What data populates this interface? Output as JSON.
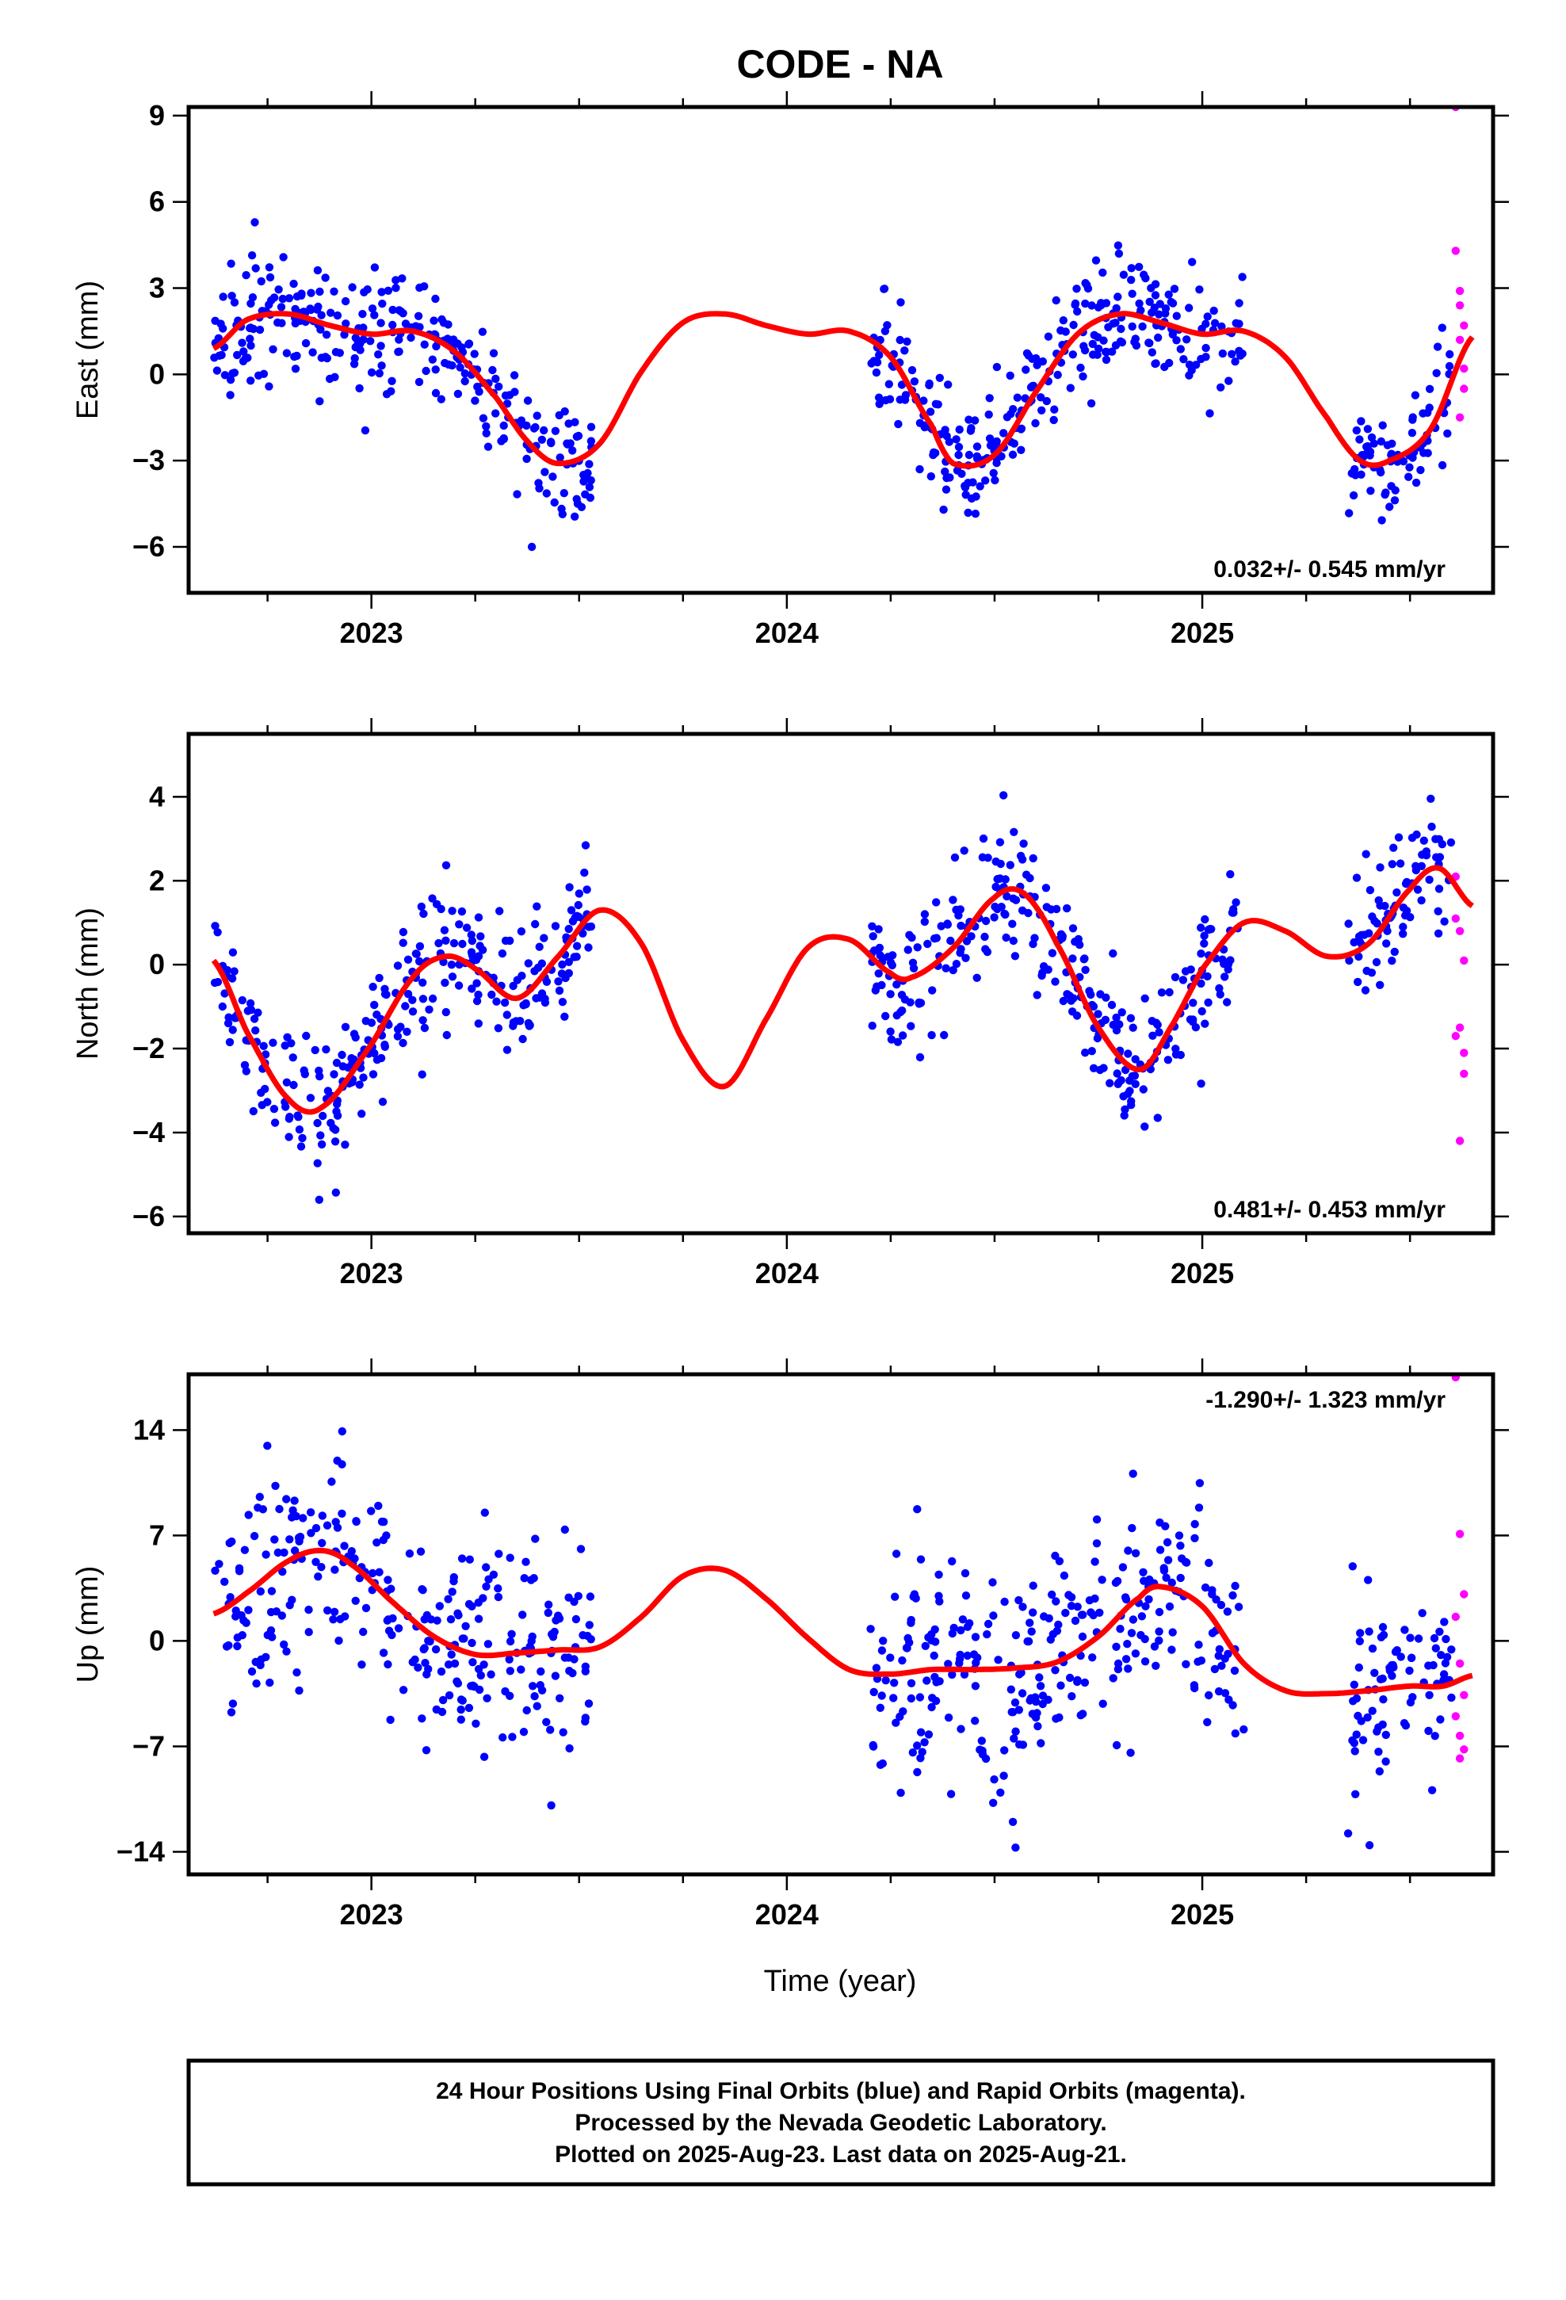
{
  "title": "CODE - NA",
  "xlabel": "Time (year)",
  "caption": {
    "lines": [
      "24 Hour Positions Using Final Orbits (blue) and Rapid Orbits (magenta).",
      "Processed by the Nevada Geodetic Laboratory.",
      "Plotted on 2025-Aug-23. Last data on 2025-Aug-21."
    ]
  },
  "colors": {
    "final": "#0000ff",
    "rapid": "#ff00ff",
    "model": "#ff0000",
    "frame": "#000000"
  },
  "chart_data": [
    {
      "type": "scatter",
      "component": "east",
      "ylabel": "East (mm)",
      "rate_text": "0.032+/- 0.545 mm/yr",
      "rate_position": "bottom-right",
      "xlim": [
        2022.56,
        2025.7
      ],
      "ylim": [
        -7.6,
        9.3
      ],
      "yticks": [
        -6,
        -3,
        0,
        3,
        6,
        9
      ],
      "xticks": [
        2023,
        2024,
        2025
      ],
      "data_segments": [
        [
          2022.62,
          2023.53
        ],
        [
          2024.2,
          2025.1
        ],
        [
          2025.35,
          2025.6
        ]
      ],
      "model_knots": {
        "x": [
          2022.62,
          2022.7,
          2022.8,
          2022.9,
          2023.0,
          2023.1,
          2023.2,
          2023.3,
          2023.38,
          2023.45,
          2023.55,
          2023.65,
          2023.75,
          2023.85,
          2023.95,
          2024.05,
          2024.15,
          2024.25,
          2024.35,
          2024.4,
          2024.5,
          2024.6,
          2024.7,
          2024.8,
          2024.9,
          2025.0,
          2025.1,
          2025.2,
          2025.3,
          2025.38,
          2025.45,
          2025.55,
          2025.65
        ],
        "y": [
          0.9,
          1.9,
          2.1,
          1.7,
          1.4,
          1.5,
          0.8,
          -0.8,
          -2.4,
          -3.1,
          -2.4,
          0.1,
          1.8,
          2.1,
          1.7,
          1.4,
          1.5,
          0.6,
          -1.8,
          -3.1,
          -2.8,
          -0.6,
          1.4,
          2.1,
          1.8,
          1.4,
          1.5,
          0.6,
          -1.5,
          -3.0,
          -3.0,
          -1.9,
          1.3
        ]
      },
      "final_noise_sd": 1.0,
      "final_points_per_year": 320,
      "rapid_points": [
        {
          "x": 2025.61,
          "y": 9.3
        },
        {
          "x": 2025.61,
          "y": 4.3
        },
        {
          "x": 2025.62,
          "y": 2.9
        },
        {
          "x": 2025.62,
          "y": 2.4
        },
        {
          "x": 2025.63,
          "y": 1.7
        },
        {
          "x": 2025.62,
          "y": 1.2
        },
        {
          "x": 2025.63,
          "y": 0.2
        },
        {
          "x": 2025.63,
          "y": -0.5
        },
        {
          "x": 2025.62,
          "y": -1.5
        }
      ]
    },
    {
      "type": "scatter",
      "component": "north",
      "ylabel": "North (mm)",
      "rate_text": "0.481+/- 0.453 mm/yr",
      "rate_position": "bottom-right",
      "xlim": [
        2022.56,
        2025.7
      ],
      "ylim": [
        -6.4,
        5.5
      ],
      "yticks": [
        -6,
        -4,
        -2,
        0,
        2,
        4
      ],
      "xticks": [
        2023,
        2024,
        2025
      ],
      "data_segments": [
        [
          2022.62,
          2023.53
        ],
        [
          2024.2,
          2025.1
        ],
        [
          2025.35,
          2025.6
        ]
      ],
      "model_knots": {
        "x": [
          2022.62,
          2022.7,
          2022.8,
          2022.88,
          2023.0,
          2023.1,
          2023.18,
          2023.25,
          2023.35,
          2023.45,
          2023.55,
          2023.65,
          2023.75,
          2023.85,
          2023.95,
          2024.05,
          2024.15,
          2024.25,
          2024.3,
          2024.4,
          2024.5,
          2024.57,
          2024.65,
          2024.75,
          2024.85,
          2024.93,
          2025.0,
          2025.1,
          2025.2,
          2025.3,
          2025.4,
          2025.5,
          2025.57,
          2025.65
        ],
        "y": [
          0.1,
          -1.6,
          -3.2,
          -3.4,
          -1.9,
          -0.3,
          0.2,
          -0.1,
          -0.8,
          0.2,
          1.3,
          0.5,
          -1.8,
          -2.9,
          -1.3,
          0.4,
          0.6,
          -0.2,
          -0.3,
          0.4,
          1.6,
          1.7,
          0.5,
          -1.5,
          -2.5,
          -1.4,
          -0.1,
          1.0,
          0.8,
          0.2,
          0.5,
          1.8,
          2.3,
          1.4
        ]
      },
      "final_noise_sd": 0.85,
      "final_points_per_year": 320,
      "rapid_points": [
        {
          "x": 2025.61,
          "y": 2.1
        },
        {
          "x": 2025.61,
          "y": 1.1
        },
        {
          "x": 2025.62,
          "y": 0.8
        },
        {
          "x": 2025.63,
          "y": 0.1
        },
        {
          "x": 2025.62,
          "y": -1.5
        },
        {
          "x": 2025.61,
          "y": -1.7
        },
        {
          "x": 2025.63,
          "y": -2.1
        },
        {
          "x": 2025.63,
          "y": -2.6
        },
        {
          "x": 2025.62,
          "y": -4.2
        }
      ]
    },
    {
      "type": "scatter",
      "component": "up",
      "ylabel": "Up (mm)",
      "rate_text": "-1.290+/- 1.323 mm/yr",
      "rate_position": "top-right",
      "xlim": [
        2022.56,
        2025.7
      ],
      "ylim": [
        -15.5,
        17.7
      ],
      "yticks": [
        -14,
        -7,
        0,
        7,
        14
      ],
      "xticks": [
        2023,
        2024,
        2025
      ],
      "data_segments": [
        [
          2022.62,
          2023.53
        ],
        [
          2024.2,
          2025.1
        ],
        [
          2025.35,
          2025.6
        ]
      ],
      "model_knots": {
        "x": [
          2022.62,
          2022.7,
          2022.8,
          2022.88,
          2022.95,
          2023.05,
          2023.15,
          2023.25,
          2023.35,
          2023.45,
          2023.55,
          2023.65,
          2023.75,
          2023.85,
          2023.95,
          2024.05,
          2024.15,
          2024.25,
          2024.35,
          2024.45,
          2024.55,
          2024.65,
          2024.75,
          2024.85,
          2024.9,
          2025.0,
          2025.1,
          2025.2,
          2025.3,
          2025.4,
          2025.5,
          2025.58,
          2025.65
        ],
        "y": [
          1.8,
          3.2,
          5.3,
          6.0,
          5.1,
          2.6,
          0.3,
          -0.9,
          -0.8,
          -0.6,
          -0.4,
          1.6,
          4.3,
          4.7,
          2.8,
          0.2,
          -1.9,
          -2.2,
          -1.9,
          -1.9,
          -1.8,
          -1.4,
          0.3,
          2.9,
          3.6,
          2.3,
          -1.5,
          -3.3,
          -3.5,
          -3.3,
          -3.0,
          -3.0,
          -2.3
        ]
      },
      "final_noise_sd": 3.6,
      "final_points_per_year": 320,
      "rapid_points": [
        {
          "x": 2025.61,
          "y": 17.5
        },
        {
          "x": 2025.62,
          "y": 7.1
        },
        {
          "x": 2025.63,
          "y": 3.1
        },
        {
          "x": 2025.61,
          "y": 1.6
        },
        {
          "x": 2025.62,
          "y": -1.5
        },
        {
          "x": 2025.63,
          "y": -3.6
        },
        {
          "x": 2025.61,
          "y": -5.0
        },
        {
          "x": 2025.62,
          "y": -6.3
        },
        {
          "x": 2025.63,
          "y": -7.2
        },
        {
          "x": 2025.62,
          "y": -7.8
        }
      ]
    }
  ]
}
